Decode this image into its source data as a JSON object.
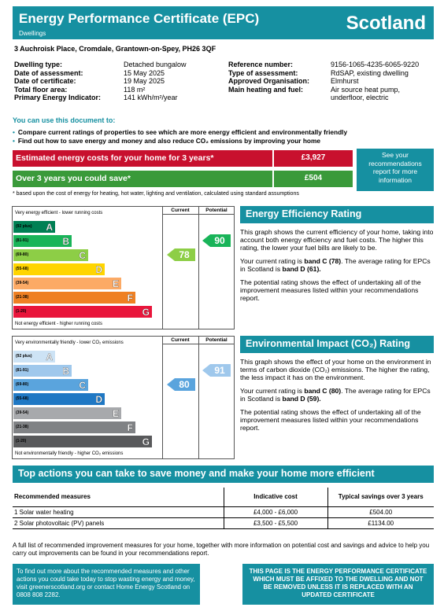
{
  "header": {
    "title": "Energy Performance Certificate (EPC)",
    "subtitle": "Dwellings",
    "country": "Scotland"
  },
  "address": "3 Auchroisk Place, Cromdale, Grantown-on-Spey, PH26 3QF",
  "details_left": [
    {
      "label": "Dwelling type:",
      "value": "Detached bungalow"
    },
    {
      "label": "Date of assessment:",
      "value": "15 May 2025"
    },
    {
      "label": "Date of certificate:",
      "value": "19 May 2025"
    },
    {
      "label": "Total floor area:",
      "value": "118 m²"
    },
    {
      "label": "Primary Energy Indicator:",
      "value": "141 kWh/m²/year"
    }
  ],
  "details_right": [
    {
      "label": "Reference number:",
      "value": "9156-1065-4235-6065-9220"
    },
    {
      "label": "Type of assessment:",
      "value": "RdSAP, existing dwelling"
    },
    {
      "label": "Approved Organisation:",
      "value": "Elmhurst"
    },
    {
      "label": "Main heating and fuel:",
      "value": "Air source heat pump, underfloor, electric"
    }
  ],
  "use_doc": {
    "heading": "You can use this document to:",
    "bullets": [
      "Compare current ratings of properties to see which are more energy efficient and environmentally friendly",
      "Find out how to save energy and money and also reduce CO₂ emissions by improving your home"
    ]
  },
  "costs": {
    "estimated_label": "Estimated energy costs for your home for 3 years*",
    "estimated_value": "£3,927",
    "save_label": "Over 3 years you could save*",
    "save_value": "£504",
    "see_box": "See your recommendations report for more information",
    "footnote": "* based upon the cost of energy for heating, hot water, lighting and ventilation, calculated using standard assumptions",
    "colors": {
      "estimated": "#c8102e",
      "save": "#3a9a3a"
    }
  },
  "ee_graph": {
    "top_text": "Very energy efficient - lower running costs",
    "bottom_text": "Not energy efficient - higher running costs",
    "col_current": "Current",
    "col_potential": "Potential",
    "bands": [
      {
        "range": "(92 plus)",
        "letter": "A",
        "color": "#008054",
        "width": 0.3
      },
      {
        "range": "(81-91)",
        "letter": "B",
        "color": "#19b459",
        "width": 0.42
      },
      {
        "range": "(69-80)",
        "letter": "C",
        "color": "#8dce46",
        "width": 0.54
      },
      {
        "range": "(55-68)",
        "letter": "D",
        "color": "#ffd500",
        "width": 0.66
      },
      {
        "range": "(39-54)",
        "letter": "E",
        "color": "#fcaa65",
        "width": 0.78
      },
      {
        "range": "(21-38)",
        "letter": "F",
        "color": "#ef8023",
        "width": 0.88
      },
      {
        "range": "(1-20)",
        "letter": "G",
        "color": "#e9153b",
        "width": 1.0
      }
    ],
    "current": {
      "value": "78",
      "color": "#8dce46",
      "band_index": 2
    },
    "potential": {
      "value": "90",
      "color": "#19b459",
      "band_index": 1
    }
  },
  "ei_graph": {
    "top_text": "Very environmentally friendly - lower CO₂ emissions",
    "bottom_text": "Not environmentally friendly - higher CO₂ emissions",
    "col_current": "Current",
    "col_potential": "Potential",
    "bands": [
      {
        "range": "(92 plus)",
        "letter": "A",
        "color": "#cde3f5",
        "width": 0.3
      },
      {
        "range": "(81-91)",
        "letter": "B",
        "color": "#9fc8ec",
        "width": 0.42
      },
      {
        "range": "(69-80)",
        "letter": "C",
        "color": "#5aa4dd",
        "width": 0.54
      },
      {
        "range": "(55-68)",
        "letter": "D",
        "color": "#1f78c4",
        "width": 0.66
      },
      {
        "range": "(39-54)",
        "letter": "E",
        "color": "#a7a9ac",
        "width": 0.78
      },
      {
        "range": "(21-38)",
        "letter": "F",
        "color": "#808285",
        "width": 0.88
      },
      {
        "range": "(1-20)",
        "letter": "G",
        "color": "#58595b",
        "width": 1.0
      }
    ],
    "current": {
      "value": "80",
      "color": "#5aa4dd",
      "band_index": 2
    },
    "potential": {
      "value": "91",
      "color": "#9fc8ec",
      "band_index": 1
    }
  },
  "ee_panel": {
    "title": "Energy Efficiency Rating",
    "p1": "This graph shows the current efficiency of your home, taking into account both energy efficiency and fuel costs. The higher this rating, the lower your fuel bills are likely to be.",
    "p2_a": "Your current rating is ",
    "p2_b": "band C (78)",
    "p2_c": ". The average rating for EPCs in Scotland is ",
    "p2_d": "band D (61).",
    "p3": "The potential rating shows the effect of undertaking all of the improvement measures listed within your recommendations report."
  },
  "ei_panel": {
    "title": "Environmental Impact (CO₂) Rating",
    "p1": "This graph shows the effect of your home on the environment in terms of carbon dioxide (CO₂) emissions. The higher the rating, the less impact it has on the environment.",
    "p2_a": "Your current rating is ",
    "p2_b": "band C (80)",
    "p2_c": ". The average rating for EPCs in Scotland is ",
    "p2_d": "band D (59).",
    "p3": "The potential rating shows the effect of undertaking all of the improvement measures listed within your recommendations report."
  },
  "actions": {
    "title": "Top actions you can take to save money and make your home more efficient",
    "headers": [
      "Recommended measures",
      "Indicative cost",
      "Typical savings over 3 years"
    ],
    "rows": [
      {
        "measure": "1 Solar water heating",
        "cost": "£4,000 - £6,000",
        "saving": "£504.00"
      },
      {
        "measure": "2 Solar photovoltaic (PV) panels",
        "cost": "£3,500 - £5,500",
        "saving": "£1134.00"
      }
    ],
    "note": "A full list of recommended improvement measures for your home, together with more information on potential cost and savings and advice to help you carry out improvements can be found in your recommendations report."
  },
  "bottom": {
    "left": "To find out more about the recommended measures and other actions you could take today to stop wasting energy and money, visit greenerscotland.org or contact Home Energy Scotland on 0808 808 2282.",
    "right": "THIS PAGE IS THE ENERGY PERFORMANCE CERTIFICATE WHICH MUST BE AFFIXED TO THE DWELLING AND NOT BE REMOVED UNLESS IT IS REPLACED WITH AN UPDATED CERTIFICATE"
  }
}
